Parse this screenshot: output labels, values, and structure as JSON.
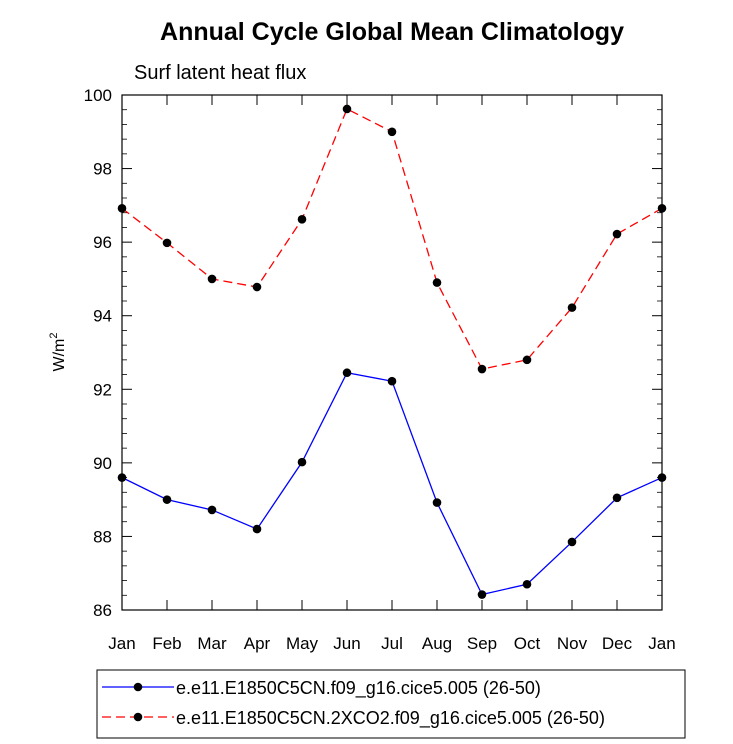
{
  "chart_data": {
    "type": "line",
    "title": "Annual Cycle Global Mean Climatology",
    "subtitle": "Surf latent heat flux",
    "xlabel": "",
    "ylabel": "W/m",
    "ylabel_superscript": "2",
    "categories": [
      "Jan",
      "Feb",
      "Mar",
      "Apr",
      "May",
      "Jun",
      "Jul",
      "Aug",
      "Sep",
      "Oct",
      "Nov",
      "Dec",
      "Jan"
    ],
    "ylim": [
      86,
      100
    ],
    "yticks": [
      "86",
      "88",
      "90",
      "92",
      "94",
      "96",
      "98",
      "100"
    ],
    "grid": false,
    "legend_position": "bottom",
    "series": [
      {
        "name": "e.e11.E1850C5CN.f09_g16.cice5.005 (26-50)",
        "color": "#0000ff",
        "dash": "solid",
        "values": [
          89.6,
          89.0,
          88.72,
          88.2,
          90.02,
          92.45,
          92.22,
          88.92,
          86.42,
          86.7,
          87.85,
          89.05,
          89.6
        ]
      },
      {
        "name": "e.e11.E1850C5CN.2XCO2.f09_g16.cice5.005 (26-50)",
        "color": "#ff0000",
        "dash": "dashed",
        "values": [
          96.92,
          95.98,
          95.0,
          94.78,
          96.62,
          99.62,
          99.0,
          94.9,
          92.55,
          92.8,
          94.22,
          96.22,
          96.92
        ]
      }
    ]
  }
}
